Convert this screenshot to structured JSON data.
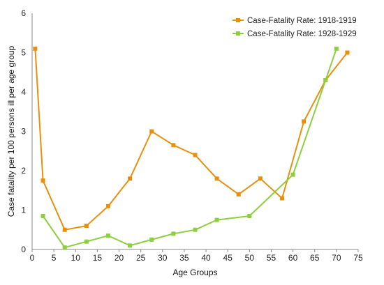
{
  "chart_data": {
    "type": "line",
    "title": "",
    "xlabel": "Age Groups",
    "ylabel": "Case fatality per 100 persons ill per age group",
    "xlim": [
      0,
      75
    ],
    "ylim": [
      0,
      6
    ],
    "x_ticks": [
      "0",
      "5",
      "10",
      "15",
      "20",
      "25",
      "30",
      "35",
      "40",
      "45",
      "50",
      "55",
      "60",
      "65",
      "70",
      "75"
    ],
    "y_ticks": [
      "0",
      "1",
      "2",
      "3",
      "4",
      "5",
      "6"
    ],
    "grid": false,
    "legend_position": "top-right",
    "series": [
      {
        "name": "Case-Fatality Rate: 1918-1919",
        "color": "#E8900C",
        "marker": "square",
        "points": [
          [
            0.7,
            5.1
          ],
          [
            2.5,
            1.75
          ],
          [
            7.5,
            0.5
          ],
          [
            12.5,
            0.6
          ],
          [
            17.5,
            1.1
          ],
          [
            22.5,
            1.8
          ],
          [
            27.5,
            3.0
          ],
          [
            32.5,
            2.65
          ],
          [
            37.5,
            2.4
          ],
          [
            42.5,
            1.8
          ],
          [
            47.5,
            1.4
          ],
          [
            52.5,
            1.8
          ],
          [
            57.5,
            1.3
          ],
          [
            62.5,
            3.25
          ],
          [
            67.5,
            4.3
          ],
          [
            72.5,
            5.0
          ]
        ]
      },
      {
        "name": "Case-Fatality Rate: 1928-1929",
        "color": "#8DCF3F",
        "marker": "square",
        "points": [
          [
            2.5,
            0.85
          ],
          [
            7.5,
            0.05
          ],
          [
            12.5,
            0.2
          ],
          [
            17.5,
            0.35
          ],
          [
            22.5,
            0.1
          ],
          [
            27.5,
            0.25
          ],
          [
            32.5,
            0.4
          ],
          [
            37.5,
            0.5
          ],
          [
            42.5,
            0.75
          ],
          [
            50.0,
            0.85
          ],
          [
            60.0,
            1.9
          ],
          [
            67.5,
            4.3
          ],
          [
            70.0,
            5.1
          ]
        ]
      }
    ]
  }
}
